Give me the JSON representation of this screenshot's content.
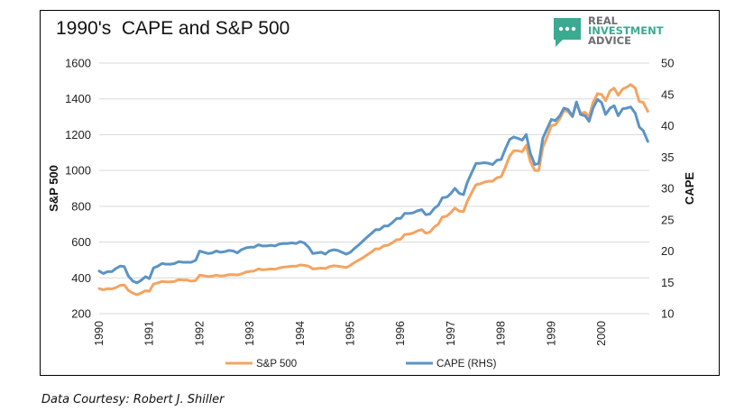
{
  "logo": {
    "line1": "REAL",
    "line2": "INVESTMENT",
    "line3": "ADVICE",
    "icon": "chat-bubble-icon",
    "colors": {
      "icon": "#3aaa91",
      "text": "#6d6e71",
      "accent": "#3aaa91"
    }
  },
  "footer": {
    "source": "Data Courtesy: Robert J. Shiller"
  },
  "chart_data": {
    "type": "line",
    "title": "1990's  CAPE and S&P 500",
    "ylabel": "S&P 500",
    "y2label": "CAPE",
    "ylim": [
      200,
      1600
    ],
    "y2lim": [
      10,
      50
    ],
    "yticks": [
      "1600",
      "1400",
      "1200",
      "1000",
      "800",
      "600",
      "400",
      "200"
    ],
    "y2ticks": [
      "50",
      "45",
      "40",
      "35",
      "30",
      "25",
      "20",
      "15",
      "10"
    ],
    "xlim": [
      1990,
      2000.95
    ],
    "xticks": [
      "1990",
      "1991",
      "1992",
      "1993",
      "1994",
      "1995",
      "1996",
      "1997",
      "1998",
      "1999",
      "2000"
    ],
    "grid": true,
    "legend": "bottom",
    "series": [
      {
        "name": "S&P 500",
        "axis": "left",
        "color": "#f4a460",
        "points": [
          [
            1990.0,
            340
          ],
          [
            1990.08,
            333
          ],
          [
            1990.17,
            340
          ],
          [
            1990.25,
            338
          ],
          [
            1990.33,
            345
          ],
          [
            1990.42,
            358
          ],
          [
            1990.5,
            360
          ],
          [
            1990.58,
            330
          ],
          [
            1990.67,
            315
          ],
          [
            1990.75,
            306
          ],
          [
            1990.83,
            315
          ],
          [
            1990.92,
            328
          ],
          [
            1991.0,
            326
          ],
          [
            1991.08,
            365
          ],
          [
            1991.17,
            372
          ],
          [
            1991.25,
            380
          ],
          [
            1991.33,
            378
          ],
          [
            1991.42,
            378
          ],
          [
            1991.5,
            380
          ],
          [
            1991.58,
            390
          ],
          [
            1991.67,
            388
          ],
          [
            1991.75,
            388
          ],
          [
            1991.83,
            382
          ],
          [
            1991.92,
            385
          ],
          [
            1992.0,
            415
          ],
          [
            1992.08,
            412
          ],
          [
            1992.17,
            407
          ],
          [
            1992.25,
            410
          ],
          [
            1992.33,
            415
          ],
          [
            1992.42,
            410
          ],
          [
            1992.5,
            412
          ],
          [
            1992.58,
            418
          ],
          [
            1992.67,
            418
          ],
          [
            1992.75,
            416
          ],
          [
            1992.83,
            422
          ],
          [
            1992.92,
            432
          ],
          [
            1993.0,
            436
          ],
          [
            1993.08,
            438
          ],
          [
            1993.17,
            450
          ],
          [
            1993.25,
            445
          ],
          [
            1993.33,
            447
          ],
          [
            1993.42,
            450
          ],
          [
            1993.5,
            448
          ],
          [
            1993.58,
            455
          ],
          [
            1993.67,
            460
          ],
          [
            1993.75,
            462
          ],
          [
            1993.83,
            465
          ],
          [
            1993.92,
            465
          ],
          [
            1994.0,
            472
          ],
          [
            1994.08,
            470
          ],
          [
            1994.17,
            465
          ],
          [
            1994.25,
            450
          ],
          [
            1994.33,
            452
          ],
          [
            1994.42,
            455
          ],
          [
            1994.5,
            452
          ],
          [
            1994.58,
            462
          ],
          [
            1994.67,
            468
          ],
          [
            1994.75,
            465
          ],
          [
            1994.83,
            462
          ],
          [
            1994.92,
            458
          ],
          [
            1995.0,
            470
          ],
          [
            1995.08,
            485
          ],
          [
            1995.17,
            500
          ],
          [
            1995.25,
            512
          ],
          [
            1995.33,
            528
          ],
          [
            1995.42,
            544
          ],
          [
            1995.5,
            562
          ],
          [
            1995.58,
            562
          ],
          [
            1995.67,
            580
          ],
          [
            1995.75,
            582
          ],
          [
            1995.83,
            595
          ],
          [
            1995.92,
            613
          ],
          [
            1996.0,
            615
          ],
          [
            1996.08,
            642
          ],
          [
            1996.17,
            645
          ],
          [
            1996.25,
            650
          ],
          [
            1996.33,
            662
          ],
          [
            1996.42,
            670
          ],
          [
            1996.5,
            650
          ],
          [
            1996.58,
            655
          ],
          [
            1996.67,
            685
          ],
          [
            1996.75,
            700
          ],
          [
            1996.83,
            740
          ],
          [
            1996.92,
            745
          ],
          [
            1997.0,
            765
          ],
          [
            1997.08,
            790
          ],
          [
            1997.17,
            772
          ],
          [
            1997.25,
            770
          ],
          [
            1997.33,
            830
          ],
          [
            1997.42,
            880
          ],
          [
            1997.5,
            920
          ],
          [
            1997.58,
            925
          ],
          [
            1997.67,
            935
          ],
          [
            1997.75,
            940
          ],
          [
            1997.83,
            940
          ],
          [
            1997.92,
            960
          ],
          [
            1998.0,
            965
          ],
          [
            1998.08,
            1015
          ],
          [
            1998.17,
            1080
          ],
          [
            1998.25,
            1110
          ],
          [
            1998.33,
            1110
          ],
          [
            1998.42,
            1105
          ],
          [
            1998.5,
            1140
          ],
          [
            1998.58,
            1050
          ],
          [
            1998.67,
            1000
          ],
          [
            1998.75,
            1000
          ],
          [
            1998.83,
            1130
          ],
          [
            1998.92,
            1190
          ],
          [
            1999.0,
            1250
          ],
          [
            1999.08,
            1255
          ],
          [
            1999.17,
            1290
          ],
          [
            1999.25,
            1335
          ],
          [
            1999.33,
            1330
          ],
          [
            1999.42,
            1300
          ],
          [
            1999.5,
            1375
          ],
          [
            1999.58,
            1320
          ],
          [
            1999.67,
            1325
          ],
          [
            1999.75,
            1300
          ],
          [
            1999.83,
            1380
          ],
          [
            1999.92,
            1430
          ],
          [
            2000.0,
            1425
          ],
          [
            2000.08,
            1390
          ],
          [
            2000.17,
            1445
          ],
          [
            2000.25,
            1460
          ],
          [
            2000.33,
            1420
          ],
          [
            2000.42,
            1455
          ],
          [
            2000.5,
            1465
          ],
          [
            2000.58,
            1480
          ],
          [
            2000.67,
            1460
          ],
          [
            2000.75,
            1385
          ],
          [
            2000.83,
            1380
          ],
          [
            2000.92,
            1330
          ]
        ]
      },
      {
        "name": "CAPE (RHS)",
        "axis": "right",
        "color": "#5b94c5",
        "points": [
          [
            1990.0,
            16.8
          ],
          [
            1990.08,
            16.4
          ],
          [
            1990.17,
            16.7
          ],
          [
            1990.25,
            16.7
          ],
          [
            1990.33,
            17.2
          ],
          [
            1990.42,
            17.6
          ],
          [
            1990.5,
            17.5
          ],
          [
            1990.58,
            16.0
          ],
          [
            1990.67,
            15.2
          ],
          [
            1990.75,
            14.9
          ],
          [
            1990.83,
            15.3
          ],
          [
            1990.92,
            15.9
          ],
          [
            1991.0,
            15.6
          ],
          [
            1991.08,
            17.3
          ],
          [
            1991.17,
            17.6
          ],
          [
            1991.25,
            18.0
          ],
          [
            1991.33,
            17.9
          ],
          [
            1991.42,
            17.9
          ],
          [
            1991.5,
            18.0
          ],
          [
            1991.58,
            18.3
          ],
          [
            1991.67,
            18.2
          ],
          [
            1991.75,
            18.2
          ],
          [
            1991.83,
            18.2
          ],
          [
            1991.92,
            18.5
          ],
          [
            1992.0,
            20.0
          ],
          [
            1992.08,
            19.8
          ],
          [
            1992.17,
            19.6
          ],
          [
            1992.25,
            19.7
          ],
          [
            1992.33,
            20.0
          ],
          [
            1992.42,
            19.8
          ],
          [
            1992.5,
            19.9
          ],
          [
            1992.58,
            20.1
          ],
          [
            1992.67,
            20.0
          ],
          [
            1992.75,
            19.7
          ],
          [
            1992.83,
            20.2
          ],
          [
            1992.92,
            20.5
          ],
          [
            1993.0,
            20.6
          ],
          [
            1993.08,
            20.6
          ],
          [
            1993.17,
            21.0
          ],
          [
            1993.25,
            20.8
          ],
          [
            1993.33,
            20.8
          ],
          [
            1993.42,
            20.9
          ],
          [
            1993.5,
            20.8
          ],
          [
            1993.58,
            21.1
          ],
          [
            1993.67,
            21.2
          ],
          [
            1993.75,
            21.2
          ],
          [
            1993.83,
            21.3
          ],
          [
            1993.92,
            21.2
          ],
          [
            1994.0,
            21.5
          ],
          [
            1994.08,
            21.3
          ],
          [
            1994.17,
            20.6
          ],
          [
            1994.25,
            19.6
          ],
          [
            1994.33,
            19.7
          ],
          [
            1994.42,
            19.8
          ],
          [
            1994.5,
            19.5
          ],
          [
            1994.58,
            20.0
          ],
          [
            1994.67,
            20.2
          ],
          [
            1994.75,
            20.1
          ],
          [
            1994.83,
            19.8
          ],
          [
            1994.92,
            19.5
          ],
          [
            1995.0,
            19.8
          ],
          [
            1995.08,
            20.4
          ],
          [
            1995.17,
            21.0
          ],
          [
            1995.25,
            21.6
          ],
          [
            1995.33,
            22.2
          ],
          [
            1995.42,
            22.8
          ],
          [
            1995.5,
            23.4
          ],
          [
            1995.58,
            23.4
          ],
          [
            1995.67,
            24.0
          ],
          [
            1995.75,
            24.0
          ],
          [
            1995.83,
            24.5
          ],
          [
            1995.92,
            25.2
          ],
          [
            1996.0,
            25.2
          ],
          [
            1996.08,
            26.0
          ],
          [
            1996.17,
            26.0
          ],
          [
            1996.25,
            26.1
          ],
          [
            1996.33,
            26.4
          ],
          [
            1996.42,
            26.6
          ],
          [
            1996.5,
            25.8
          ],
          [
            1996.58,
            25.9
          ],
          [
            1996.67,
            26.8
          ],
          [
            1996.75,
            27.3
          ],
          [
            1996.83,
            28.5
          ],
          [
            1996.92,
            28.6
          ],
          [
            1997.0,
            29.2
          ],
          [
            1997.08,
            30.0
          ],
          [
            1997.17,
            29.2
          ],
          [
            1997.25,
            29.0
          ],
          [
            1997.33,
            31.0
          ],
          [
            1997.42,
            32.6
          ],
          [
            1997.5,
            34.0
          ],
          [
            1997.58,
            34.0
          ],
          [
            1997.67,
            34.1
          ],
          [
            1997.75,
            34.0
          ],
          [
            1997.83,
            33.8
          ],
          [
            1997.92,
            34.5
          ],
          [
            1998.0,
            34.6
          ],
          [
            1998.08,
            36.2
          ],
          [
            1998.17,
            37.8
          ],
          [
            1998.25,
            38.2
          ],
          [
            1998.33,
            38.0
          ],
          [
            1998.42,
            37.7
          ],
          [
            1998.5,
            38.6
          ],
          [
            1998.58,
            35.6
          ],
          [
            1998.67,
            33.8
          ],
          [
            1998.75,
            34.0
          ],
          [
            1998.83,
            38.0
          ],
          [
            1998.92,
            39.6
          ],
          [
            1999.0,
            41.0
          ],
          [
            1999.08,
            40.8
          ],
          [
            1999.17,
            41.6
          ],
          [
            1999.25,
            42.8
          ],
          [
            1999.33,
            42.6
          ],
          [
            1999.42,
            41.5
          ],
          [
            1999.5,
            43.8
          ],
          [
            1999.58,
            41.8
          ],
          [
            1999.67,
            41.6
          ],
          [
            1999.75,
            40.7
          ],
          [
            1999.83,
            42.8
          ],
          [
            1999.92,
            44.2
          ],
          [
            2000.0,
            43.7
          ],
          [
            2000.08,
            41.8
          ],
          [
            2000.17,
            42.8
          ],
          [
            2000.25,
            43.2
          ],
          [
            2000.33,
            41.6
          ],
          [
            2000.42,
            42.7
          ],
          [
            2000.5,
            42.8
          ],
          [
            2000.58,
            43.0
          ],
          [
            2000.67,
            42.0
          ],
          [
            2000.75,
            39.8
          ],
          [
            2000.83,
            39.2
          ],
          [
            2000.92,
            37.5
          ]
        ]
      }
    ]
  }
}
